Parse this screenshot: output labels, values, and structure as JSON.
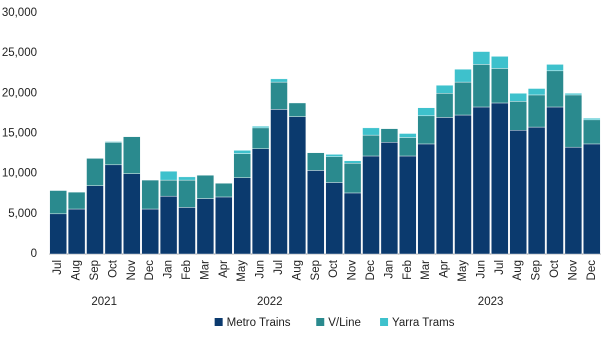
{
  "chart_data": {
    "type": "stacked_bar",
    "categories": [
      "Jul",
      "Aug",
      "Sep",
      "Oct",
      "Nov",
      "Dec",
      "Jan",
      "Feb",
      "Mar",
      "Apr",
      "May",
      "Jun",
      "Jul",
      "Aug",
      "Sep",
      "Oct",
      "Nov",
      "Dec",
      "Jan",
      "Feb",
      "Mar",
      "Apr",
      "May",
      "Jun",
      "Jul",
      "Aug",
      "Sep",
      "Oct",
      "Nov",
      "Dec"
    ],
    "x_groups": [
      {
        "label": "2021",
        "size": 6
      },
      {
        "label": "2022",
        "size": 12
      },
      {
        "label": "2023",
        "size": 12
      }
    ],
    "series": [
      {
        "name": "Metro Trains",
        "color": "#0b3a6e",
        "values": [
          5000,
          5600,
          8500,
          11100,
          10000,
          5600,
          7200,
          5800,
          6900,
          7100,
          9500,
          13100,
          18000,
          17100,
          10400,
          8900,
          7600,
          12200,
          13900,
          12200,
          13700,
          17000,
          17300,
          18300,
          18800,
          15400,
          15800,
          18300,
          13300,
          13700
        ]
      },
      {
        "name": "V/Line",
        "color": "#2a8a8e",
        "values": [
          2900,
          2100,
          3400,
          2800,
          4600,
          3600,
          2000,
          3400,
          2900,
          1700,
          3000,
          2600,
          3400,
          1700,
          2200,
          3200,
          3700,
          2600,
          1700,
          2300,
          3500,
          3000,
          4100,
          5300,
          4300,
          3600,
          4000,
          4500,
          6500,
          3000
        ]
      },
      {
        "name": "Yarra Trams",
        "color": "#3ec1cc",
        "values": [
          0,
          0,
          0,
          100,
          0,
          0,
          1100,
          400,
          0,
          0,
          400,
          200,
          400,
          0,
          0,
          300,
          300,
          900,
          0,
          500,
          1000,
          1000,
          1600,
          1600,
          1500,
          1000,
          800,
          800,
          200,
          200
        ]
      }
    ],
    "ylim": [
      0,
      30000
    ],
    "yticks": [
      {
        "value": 0,
        "label": "0"
      },
      {
        "value": 5000,
        "label": "5,000"
      },
      {
        "value": 10000,
        "label": "10,000"
      },
      {
        "value": 15000,
        "label": "15,000"
      },
      {
        "value": 20000,
        "label": "20,000"
      },
      {
        "value": 25000,
        "label": "25,000"
      },
      {
        "value": 30000,
        "label": "30,000"
      }
    ],
    "grid": false,
    "legend": "bottom"
  }
}
